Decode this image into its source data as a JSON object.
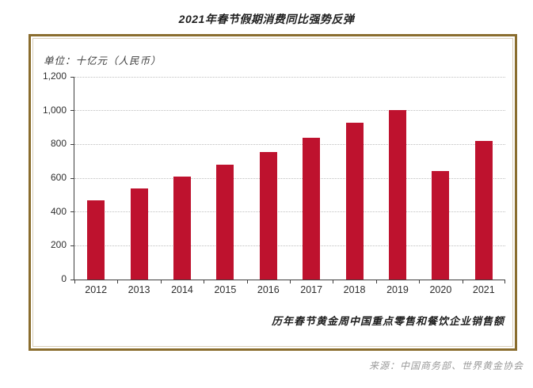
{
  "page": {
    "title": "2021年春节假期消费同比强势反弹",
    "source": "来源：中国商务部、世界黄金协会"
  },
  "chart": {
    "unit_label": "单位：十亿元（人民币）",
    "caption": "历年春节黄金周中国重点零售和餐饮企业销售额"
  },
  "chart_data": {
    "type": "bar",
    "title": "2021年春节假期消费同比强势反弹",
    "unit": "十亿元（人民币）",
    "categories": [
      "2012",
      "2013",
      "2014",
      "2015",
      "2016",
      "2017",
      "2018",
      "2019",
      "2020",
      "2021"
    ],
    "values": [
      470,
      539,
      610,
      678,
      754,
      840,
      926,
      1005,
      640,
      821
    ],
    "ylim": [
      0,
      1200
    ],
    "ytick_step": 200,
    "grid": "horizontal-dotted",
    "legend": "none",
    "caption": "历年春节黄金周中国重点零售和餐饮企业销售额",
    "source": "来源：中国商务部、世界黄金协会"
  },
  "colors": {
    "bar": "#BE122E",
    "frame_border": "#8A6D2E",
    "frame_inner_border": "#D9CFBA",
    "gridline": "#BFBFBF",
    "axis": "#3F3F3F"
  }
}
